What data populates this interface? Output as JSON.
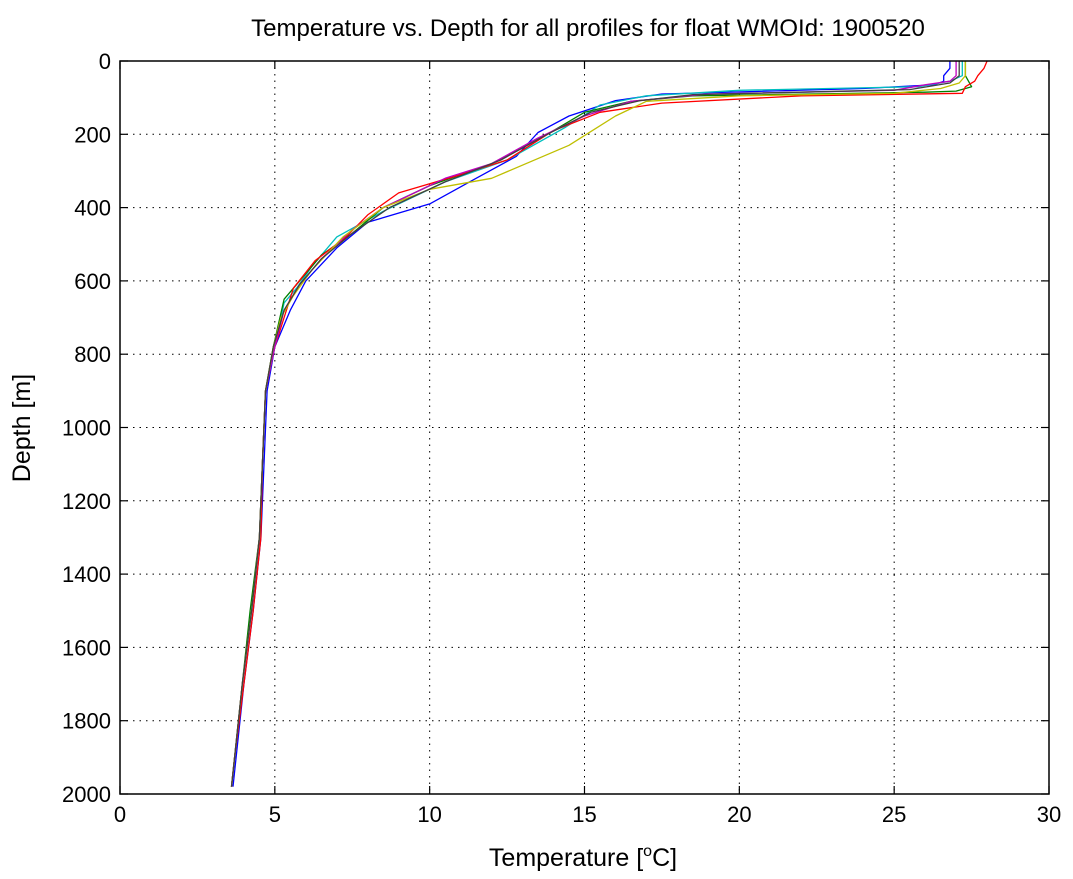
{
  "chart_data": {
    "type": "line",
    "title": "Temperature vs. Depth for all profiles for float WMOId: 1900520",
    "xlabel": "Temperature [",
    "xlabel_sup": "o",
    "xlabel_end": "C]",
    "ylabel": "Depth [m]",
    "xlim": [
      0,
      30
    ],
    "ylim": [
      0,
      2000
    ],
    "y_reversed": true,
    "grid": true,
    "xticks": [
      0,
      5,
      10,
      15,
      20,
      25,
      30
    ],
    "yticks": [
      0,
      200,
      400,
      600,
      800,
      1000,
      1200,
      1400,
      1600,
      1800,
      2000
    ],
    "xtick_labels": [
      "0",
      "5",
      "10",
      "15",
      "20",
      "25",
      "30"
    ],
    "ytick_labels": [
      "0",
      "200",
      "400",
      "600",
      "800",
      "1000",
      "1200",
      "1400",
      "1600",
      "1800",
      "2000"
    ],
    "series": [
      {
        "color": "#0000ff",
        "points": [
          [
            26.8,
            0
          ],
          [
            26.8,
            20
          ],
          [
            26.6,
            40
          ],
          [
            26.6,
            55
          ],
          [
            26.3,
            65
          ],
          [
            24.0,
            75
          ],
          [
            17.5,
            90
          ],
          [
            16.0,
            108
          ],
          [
            14.5,
            150
          ],
          [
            13.5,
            195
          ],
          [
            12.8,
            260
          ],
          [
            11.5,
            320
          ],
          [
            10.0,
            390
          ],
          [
            8.0,
            440
          ],
          [
            7.0,
            510
          ],
          [
            6.0,
            600
          ],
          [
            5.5,
            680
          ],
          [
            5.0,
            780
          ],
          [
            4.75,
            900
          ],
          [
            4.65,
            1100
          ],
          [
            4.55,
            1300
          ],
          [
            4.3,
            1500
          ],
          [
            4.0,
            1700
          ],
          [
            3.75,
            1900
          ],
          [
            3.65,
            1980
          ]
        ]
      },
      {
        "color": "#00bfbf",
        "points": [
          [
            27.2,
            0
          ],
          [
            27.2,
            40
          ],
          [
            26.8,
            55
          ],
          [
            25.8,
            70
          ],
          [
            20.0,
            80
          ],
          [
            17.0,
            95
          ],
          [
            15.5,
            120
          ],
          [
            14.4,
            180
          ],
          [
            12.5,
            270
          ],
          [
            10.5,
            330
          ],
          [
            8.5,
            410
          ],
          [
            7.0,
            480
          ],
          [
            6.2,
            560
          ],
          [
            5.7,
            620
          ],
          [
            5.3,
            660
          ],
          [
            5.0,
            780
          ],
          [
            4.7,
            900
          ],
          [
            4.6,
            1100
          ],
          [
            4.5,
            1300
          ],
          [
            4.25,
            1500
          ],
          [
            3.95,
            1700
          ],
          [
            3.7,
            1900
          ],
          [
            3.6,
            1980
          ]
        ]
      },
      {
        "color": "#008000",
        "points": [
          [
            27.3,
            0
          ],
          [
            27.3,
            40
          ],
          [
            27.5,
            70
          ],
          [
            27.0,
            82
          ],
          [
            26.0,
            85
          ],
          [
            18.5,
            95
          ],
          [
            16.5,
            110
          ],
          [
            15.0,
            140
          ],
          [
            13.8,
            200
          ],
          [
            12.0,
            280
          ],
          [
            10.0,
            340
          ],
          [
            8.5,
            400
          ],
          [
            7.5,
            470
          ],
          [
            6.5,
            530
          ],
          [
            5.8,
            600
          ],
          [
            5.3,
            650
          ],
          [
            4.95,
            780
          ],
          [
            4.7,
            900
          ],
          [
            4.6,
            1100
          ],
          [
            4.5,
            1300
          ],
          [
            4.2,
            1500
          ],
          [
            3.95,
            1700
          ],
          [
            3.7,
            1900
          ],
          [
            3.6,
            1980
          ]
        ]
      },
      {
        "color": "#ff0000",
        "points": [
          [
            28.0,
            0
          ],
          [
            27.9,
            20
          ],
          [
            27.7,
            40
          ],
          [
            27.6,
            55
          ],
          [
            27.3,
            70
          ],
          [
            27.2,
            88
          ],
          [
            22.0,
            95
          ],
          [
            17.5,
            115
          ],
          [
            15.5,
            140
          ],
          [
            14.0,
            190
          ],
          [
            12.5,
            270
          ],
          [
            11.0,
            310
          ],
          [
            9.0,
            360
          ],
          [
            8.0,
            420
          ],
          [
            7.3,
            480
          ],
          [
            6.3,
            545
          ],
          [
            5.6,
            620
          ],
          [
            5.0,
            780
          ],
          [
            4.7,
            900
          ],
          [
            4.6,
            1100
          ],
          [
            4.55,
            1300
          ],
          [
            4.3,
            1500
          ],
          [
            4.0,
            1700
          ],
          [
            3.7,
            1900
          ],
          [
            3.6,
            1980
          ]
        ]
      },
      {
        "color": "#bf00bf",
        "points": [
          [
            27.0,
            0
          ],
          [
            27.0,
            40
          ],
          [
            26.8,
            55
          ],
          [
            26.0,
            65
          ],
          [
            25.0,
            80
          ],
          [
            19.0,
            90
          ],
          [
            16.5,
            110
          ],
          [
            15.0,
            150
          ],
          [
            13.5,
            210
          ],
          [
            12.0,
            280
          ],
          [
            10.5,
            320
          ],
          [
            8.5,
            400
          ],
          [
            7.5,
            460
          ],
          [
            6.5,
            540
          ],
          [
            5.8,
            610
          ],
          [
            5.3,
            680
          ],
          [
            5.0,
            780
          ],
          [
            4.7,
            900
          ],
          [
            4.6,
            1100
          ],
          [
            4.5,
            1300
          ],
          [
            4.25,
            1500
          ],
          [
            3.95,
            1700
          ],
          [
            3.7,
            1900
          ],
          [
            3.6,
            1980
          ]
        ]
      },
      {
        "color": "#bfbf00",
        "points": [
          [
            27.3,
            0
          ],
          [
            27.3,
            40
          ],
          [
            27.1,
            60
          ],
          [
            26.5,
            75
          ],
          [
            25.0,
            88
          ],
          [
            20.0,
            95
          ],
          [
            17.0,
            110
          ],
          [
            16.0,
            150
          ],
          [
            14.5,
            230
          ],
          [
            12.0,
            320
          ],
          [
            10.0,
            350
          ],
          [
            8.5,
            400
          ],
          [
            7.2,
            480
          ],
          [
            6.2,
            570
          ],
          [
            5.6,
            640
          ],
          [
            5.2,
            700
          ],
          [
            4.95,
            780
          ],
          [
            4.7,
            900
          ],
          [
            4.6,
            1100
          ],
          [
            4.5,
            1300
          ],
          [
            4.25,
            1500
          ],
          [
            3.95,
            1700
          ],
          [
            3.7,
            1900
          ],
          [
            3.6,
            1980
          ]
        ]
      },
      {
        "color": "#404040",
        "points": [
          [
            27.1,
            0
          ],
          [
            27.1,
            40
          ],
          [
            26.8,
            60
          ],
          [
            25.5,
            78
          ],
          [
            18.5,
            92
          ],
          [
            16.8,
            108
          ],
          [
            15.2,
            140
          ],
          [
            13.8,
            200
          ],
          [
            12.3,
            270
          ],
          [
            10.5,
            330
          ],
          [
            8.7,
            400
          ],
          [
            7.5,
            470
          ],
          [
            6.5,
            540
          ],
          [
            5.8,
            610
          ],
          [
            5.3,
            680
          ],
          [
            4.95,
            780
          ],
          [
            4.7,
            900
          ],
          [
            4.6,
            1100
          ],
          [
            4.5,
            1300
          ],
          [
            4.25,
            1500
          ],
          [
            3.95,
            1700
          ],
          [
            3.7,
            1900
          ],
          [
            3.6,
            1980
          ]
        ]
      }
    ]
  }
}
